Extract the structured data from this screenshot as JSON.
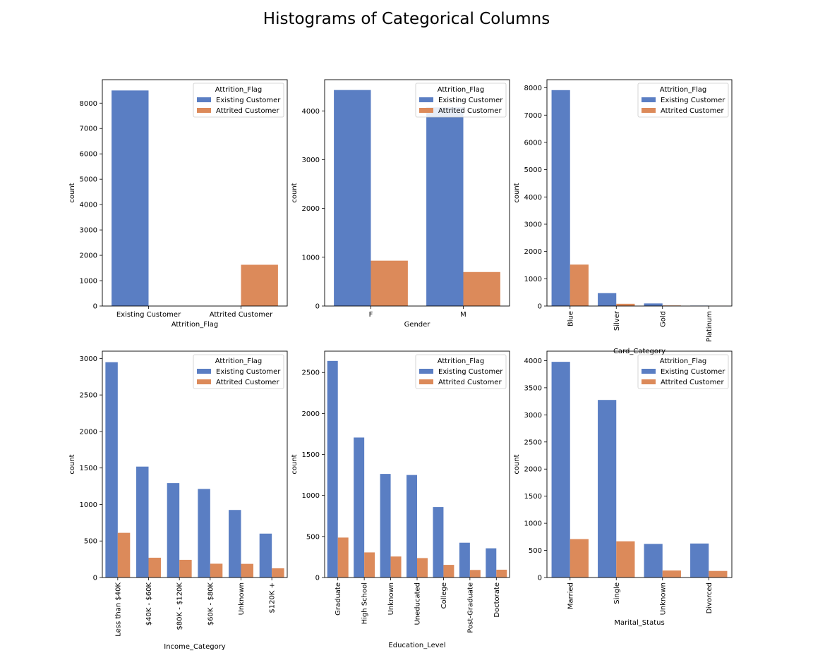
{
  "figure": {
    "suptitle": "Histograms of Categorical Columns"
  },
  "colors": {
    "existing": "#5a7ec3",
    "attrited": "#dc8a5a"
  },
  "chart_data": [
    {
      "type": "bar",
      "xlabel": "Attrition_Flag",
      "ylabel": "count",
      "categories": [
        "Existing Customer",
        "Attrited Customer"
      ],
      "ylim": [
        0,
        8925
      ],
      "yticks": [
        0,
        1000,
        2000,
        3000,
        4000,
        5000,
        6000,
        7000,
        8000
      ],
      "rotate_labels": false,
      "legend": {
        "title": "Attrition_Flag",
        "placement": "upper right"
      },
      "series": [
        {
          "name": "Existing Customer",
          "values": [
            8500,
            0
          ]
        },
        {
          "name": "Attrited Customer",
          "values": [
            0,
            1627
          ]
        }
      ]
    },
    {
      "type": "bar",
      "xlabel": "Gender",
      "ylabel": "count",
      "categories": [
        "F",
        "M"
      ],
      "ylim": [
        0,
        4640
      ],
      "yticks": [
        0,
        1000,
        2000,
        3000,
        4000
      ],
      "rotate_labels": false,
      "legend": {
        "title": "Attrition_Flag",
        "placement": "upper right"
      },
      "series": [
        {
          "name": "Existing Customer",
          "values": [
            4428,
            4072
          ]
        },
        {
          "name": "Attrited Customer",
          "values": [
            930,
            697
          ]
        }
      ]
    },
    {
      "type": "bar",
      "xlabel": "Card_Category",
      "ylabel": "count",
      "categories": [
        "Blue",
        "Silver",
        "Gold",
        "Platinum"
      ],
      "ylim": [
        0,
        8300
      ],
      "yticks": [
        0,
        1000,
        2000,
        3000,
        4000,
        5000,
        6000,
        7000,
        8000
      ],
      "rotate_labels": true,
      "legend": {
        "title": "Attrition_Flag",
        "placement": "upper right"
      },
      "series": [
        {
          "name": "Existing Customer",
          "values": [
            7917,
            473,
            95,
            15
          ]
        },
        {
          "name": "Attrited Customer",
          "values": [
            1519,
            82,
            21,
            5
          ]
        }
      ]
    },
    {
      "type": "bar",
      "xlabel": "Income_Category",
      "ylabel": "count",
      "categories": [
        "Less than $40K",
        "$40K - $60K",
        "$80K - $120K",
        "$60K - $80K",
        "Unknown",
        "$120K +"
      ],
      "ylim": [
        0,
        3100
      ],
      "yticks": [
        0,
        500,
        1000,
        1500,
        2000,
        2500,
        3000
      ],
      "rotate_labels": true,
      "legend": {
        "title": "Attrition_Flag",
        "placement": "upper right"
      },
      "series": [
        {
          "name": "Existing Customer",
          "values": [
            2949,
            1519,
            1293,
            1213,
            925,
            601
          ]
        },
        {
          "name": "Attrited Customer",
          "values": [
            612,
            271,
            242,
            189,
            187,
            126
          ]
        }
      ]
    },
    {
      "type": "bar",
      "xlabel": "Education_Level",
      "ylabel": "count",
      "categories": [
        "Graduate",
        "High School",
        "Unknown",
        "Uneducated",
        "College",
        "Post-Graduate",
        "Doctorate"
      ],
      "ylim": [
        0,
        2760
      ],
      "yticks": [
        0,
        500,
        1000,
        1500,
        2000,
        2500
      ],
      "rotate_labels": true,
      "legend": {
        "title": "Attrition_Flag",
        "placement": "upper right"
      },
      "series": [
        {
          "name": "Existing Customer",
          "values": [
            2641,
            1707,
            1263,
            1250,
            859,
            424,
            356
          ]
        },
        {
          "name": "Attrited Customer",
          "values": [
            487,
            306,
            256,
            237,
            154,
            92,
            95
          ]
        }
      ]
    },
    {
      "type": "bar",
      "xlabel": "Marital_Status",
      "ylabel": "count",
      "categories": [
        "Married",
        "Single",
        "Unknown",
        "Divorced"
      ],
      "ylim": [
        0,
        4175
      ],
      "yticks": [
        0,
        500,
        1000,
        1500,
        2000,
        2500,
        3000,
        3500,
        4000
      ],
      "rotate_labels": true,
      "legend": {
        "title": "Attrition_Flag",
        "placement": "upper right"
      },
      "series": [
        {
          "name": "Existing Customer",
          "values": [
            3978,
            3275,
            620,
            627
          ]
        },
        {
          "name": "Attrited Customer",
          "values": [
            709,
            668,
            129,
            121
          ]
        }
      ]
    }
  ]
}
